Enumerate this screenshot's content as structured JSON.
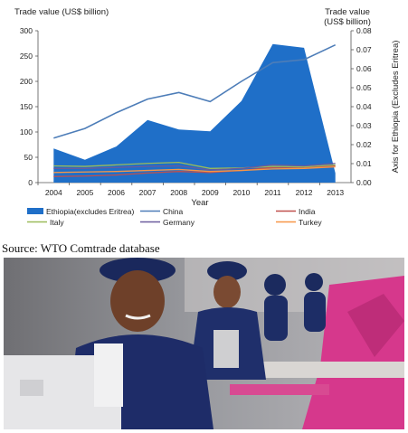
{
  "chart_data": {
    "type": "line",
    "categories": [
      "2004",
      "2005",
      "2006",
      "2007",
      "2008",
      "2009",
      "2010",
      "2011",
      "2012",
      "2013"
    ],
    "left_axis_title": "Trade value (US$ billion)",
    "right_axis_title_line1": "Trade value",
    "right_axis_title_line2": "(US$ billion)",
    "right_axis_side_label": "Axis for Ethiopia (Excludes Eritrea)",
    "xlabel": "Year",
    "ylim_left": [
      0,
      300
    ],
    "yticks_left": [
      "0",
      "50",
      "100",
      "150",
      "200",
      "250",
      "300"
    ],
    "ylim_right": [
      0,
      0.08
    ],
    "yticks_right": [
      "0.00",
      "0.01",
      "0.02",
      "0.03",
      "0.04",
      "0.05",
      "0.06",
      "0.07",
      "0.08"
    ],
    "grid": false,
    "legend_position": "bottom",
    "series": [
      {
        "name": "Ethiopia(excludes Eritrea)",
        "type": "area",
        "axis": "right",
        "color": "#1f6fc8",
        "values": [
          0.018,
          0.012,
          0.019,
          0.033,
          0.028,
          0.027,
          0.043,
          0.073,
          0.071,
          0.005
        ]
      },
      {
        "name": "China",
        "type": "line",
        "axis": "left",
        "color": "#4d7db8",
        "values": [
          88,
          107,
          138,
          165,
          178,
          160,
          200,
          237,
          243,
          272
        ]
      },
      {
        "name": "India",
        "type": "line",
        "axis": "left",
        "color": "#c0504d",
        "values": [
          12,
          13,
          15,
          19,
          22,
          20,
          24,
          30,
          30,
          33
        ]
      },
      {
        "name": "Italy",
        "type": "line",
        "axis": "left",
        "color": "#9bbb59",
        "values": [
          33,
          32,
          35,
          38,
          40,
          28,
          29,
          32,
          31,
          35
        ]
      },
      {
        "name": "Germany",
        "type": "line",
        "axis": "left",
        "color": "#6a5a9e",
        "values": [
          28,
          28,
          30,
          32,
          33,
          25,
          28,
          35,
          33,
          38
        ]
      },
      {
        "name": "Turkey",
        "type": "line",
        "axis": "left",
        "color": "#f79646",
        "values": [
          20,
          21,
          22,
          24,
          26,
          22,
          24,
          27,
          28,
          31
        ]
      }
    ]
  },
  "source_text": "Source: WTO Comtrade database",
  "photo": {
    "description_icon": "garment-workers-photo",
    "colors": {
      "uniform": "#1c2b63",
      "fabric": "#d63a8e",
      "background": "#8a8b8f",
      "machine": "#e8e8ea"
    }
  }
}
